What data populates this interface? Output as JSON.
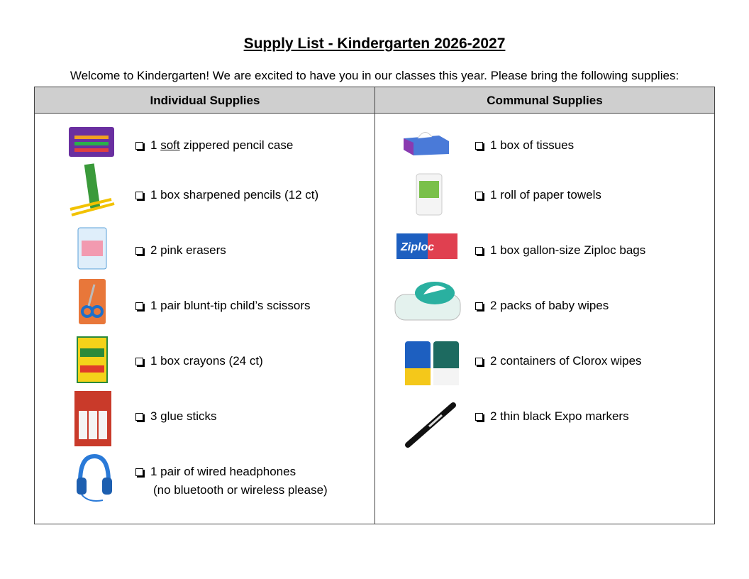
{
  "header": {
    "title": "Supply List - Kindergarten 2026-2027",
    "intro": "Welcome to Kindergarten! We are excited to have you in our classes this year. Please bring the following supplies:"
  },
  "table": {
    "columns": [
      {
        "heading": "Individual Supplies",
        "items": [
          {
            "before": "1",
            "underlined": "soft",
            "after": "zippered pencil case"
          },
          {
            "text": "1 box sharpened pencils (12 ct)"
          },
          {
            "text": "2 pink erasers"
          },
          {
            "text": "1 pair blunt-tip child’s scissors"
          },
          {
            "text": "1 box crayons (24 ct)"
          },
          {
            "text": "3 glue sticks"
          },
          {
            "text": "1 pair of wired headphones",
            "note": "(no bluetooth or wireless please)"
          }
        ]
      },
      {
        "heading": "Communal Supplies",
        "items": [
          {
            "text": "1 box of tissues"
          },
          {
            "text": "1 roll of paper towels"
          },
          {
            "text": "1 box gallon-size Ziploc bags"
          },
          {
            "text": "2 packs of baby wipes"
          },
          {
            "text": "2 containers of Clorox wipes"
          },
          {
            "text": "2 thin black Expo markers"
          }
        ]
      }
    ]
  }
}
